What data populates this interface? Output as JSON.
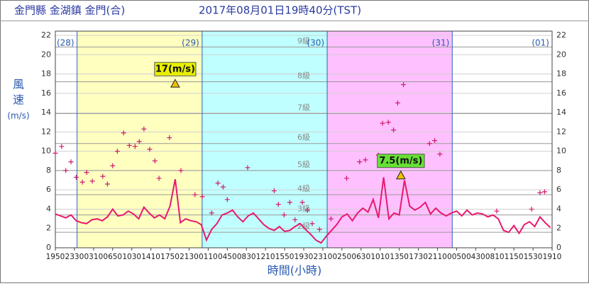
{
  "chart_data": {
    "type": "line",
    "title": "金門縣 金湖鎮 金門(合)",
    "subtitle": "2017年08月01日19時40分(TST)",
    "y_label_lines": [
      "風",
      "速",
      "(m/s)"
    ],
    "x_label": "時間(小時)",
    "xlim": [
      0,
      95.33
    ],
    "ylim": [
      0,
      22
    ],
    "yticks": [
      0,
      2,
      4,
      6,
      8,
      10,
      12,
      14,
      16,
      18,
      20,
      22
    ],
    "xticks": [
      {
        "value": 0,
        "label": "1950"
      },
      {
        "value": 3.667,
        "label": "2330"
      },
      {
        "value": 7.333,
        "label": "0310"
      },
      {
        "value": 11,
        "label": "0650"
      },
      {
        "value": 14.667,
        "label": "1030"
      },
      {
        "value": 18.333,
        "label": "1410"
      },
      {
        "value": 22,
        "label": "1750"
      },
      {
        "value": 25.667,
        "label": "2130"
      },
      {
        "value": 29.333,
        "label": "0110"
      },
      {
        "value": 33,
        "label": "0450"
      },
      {
        "value": 36.667,
        "label": "0830"
      },
      {
        "value": 40.333,
        "label": "1210"
      },
      {
        "value": 44,
        "label": "1550"
      },
      {
        "value": 47.667,
        "label": "1930"
      },
      {
        "value": 51.333,
        "label": "2310"
      },
      {
        "value": 55,
        "label": "0250"
      },
      {
        "value": 58.667,
        "label": "0630"
      },
      {
        "value": 62.333,
        "label": "1010"
      },
      {
        "value": 66,
        "label": "1350"
      },
      {
        "value": 69.667,
        "label": "1730"
      },
      {
        "value": 73.333,
        "label": "2110"
      },
      {
        "value": 77,
        "label": "0050"
      },
      {
        "value": 80.667,
        "label": "0430"
      },
      {
        "value": 84.333,
        "label": "0810"
      },
      {
        "value": 88,
        "label": "1150"
      },
      {
        "value": 91.667,
        "label": "1530"
      },
      {
        "value": 95.333,
        "label": "1910"
      }
    ],
    "day_boundaries": [
      4.167,
      28.167,
      52.167,
      76.167
    ],
    "day_labels": [
      "(28)",
      "(29)",
      "(30)",
      "(31)",
      "(01)"
    ],
    "band_colors": [
      "#ffffff",
      "#ffffc0",
      "#c0ffff",
      "#ffc0ff",
      "#ffffff"
    ],
    "beaufort": [
      {
        "value": 1.6,
        "label": "2級"
      },
      {
        "value": 3.4,
        "label": "3級"
      },
      {
        "value": 5.5,
        "label": "4級"
      },
      {
        "value": 8.0,
        "label": "5級"
      },
      {
        "value": 10.8,
        "label": "6級"
      },
      {
        "value": 13.9,
        "label": "7級"
      },
      {
        "value": 17.2,
        "label": "8級"
      },
      {
        "value": 20.8,
        "label": "9級"
      }
    ],
    "grid": true,
    "series": [
      {
        "color": "#e8196e",
        "x": [
          0,
          1,
          2,
          3,
          4,
          5,
          6,
          7,
          8,
          9,
          10,
          11,
          12,
          13,
          14,
          15,
          16,
          17,
          18,
          19,
          20,
          21,
          22,
          23,
          24,
          25,
          26,
          27,
          28,
          29,
          30,
          31,
          32,
          33,
          34,
          35,
          36,
          37,
          38,
          39,
          40,
          41,
          42,
          43,
          44,
          45,
          46,
          47,
          48,
          49,
          50,
          51,
          52,
          53,
          54,
          55,
          56,
          57,
          58,
          59,
          60,
          61,
          62,
          63,
          64,
          65,
          66,
          67,
          68,
          69,
          70,
          71,
          72,
          73,
          74,
          75,
          76,
          77,
          78,
          79,
          80,
          81,
          82,
          83,
          84,
          85,
          86,
          87,
          88,
          89,
          90,
          91,
          92,
          93,
          94,
          95
        ],
        "values": [
          3.5,
          3.3,
          3.1,
          3.4,
          2.8,
          2.6,
          2.5,
          2.9,
          3.0,
          2.8,
          3.2,
          4.0,
          3.3,
          3.4,
          3.8,
          3.5,
          3.0,
          4.2,
          3.6,
          3.1,
          3.4,
          3.0,
          4.3,
          7.1,
          2.6,
          3.0,
          2.8,
          2.7,
          2.4,
          0.8,
          1.9,
          2.5,
          3.4,
          3.6,
          3.9,
          3.2,
          2.7,
          3.3,
          3.6,
          3.0,
          2.4,
          2.0,
          1.8,
          2.2,
          1.7,
          1.8,
          2.2,
          2.5,
          1.9,
          1.4,
          0.8,
          0.5,
          1.2,
          1.8,
          2.4,
          3.2,
          3.5,
          2.8,
          3.6,
          4.1,
          3.7,
          5.0,
          3.1,
          7.3,
          3.0,
          3.6,
          3.4,
          7.0,
          4.3,
          3.9,
          4.2,
          4.7,
          3.5,
          4.1,
          3.6,
          3.3,
          3.6,
          3.8,
          3.3,
          3.9,
          3.4,
          3.6,
          3.5,
          3.2,
          3.4,
          3.0,
          1.8,
          1.6,
          2.3,
          1.5,
          2.4,
          2.7,
          2.2,
          3.2,
          2.6,
          2.1
        ]
      },
      {
        "type": "scatter",
        "color": "#d01a6e",
        "x": [
          0,
          1.2,
          2,
          3,
          4,
          5.2,
          6,
          7.1,
          9.1,
          10,
          11,
          11.9,
          13.1,
          14.2,
          15.3,
          16.1,
          17,
          18.1,
          19.1,
          19.9,
          21.9,
          24.1,
          26.8,
          28.2,
          30,
          31.2,
          32.2,
          33,
          36.9,
          42,
          42.8,
          43.9,
          45,
          46,
          47.4,
          48.4,
          49.3,
          50.7,
          52.9,
          55.9,
          58.4,
          59.5,
          62,
          62.8,
          63.9,
          64.9,
          65.7,
          66.8,
          71.8,
          72.8,
          73.8,
          84.7,
          91.4,
          93,
          93.9
        ],
        "values": [
          9.8,
          10.5,
          8.0,
          8.9,
          7.3,
          6.8,
          7.8,
          6.9,
          7.4,
          6.6,
          8.5,
          10.0,
          11.9,
          10.6,
          10.5,
          11.0,
          12.3,
          10.2,
          9.0,
          7.2,
          11.4,
          8.0,
          5.5,
          5.3,
          3.6,
          6.7,
          6.3,
          5.0,
          8.3,
          5.9,
          4.5,
          3.4,
          4.7,
          2.9,
          4.7,
          3.9,
          2.5,
          1.9,
          3.0,
          7.2,
          8.9,
          9.1,
          9.6,
          12.9,
          13.0,
          12.2,
          15.0,
          16.9,
          10.8,
          11.1,
          9.7,
          3.8,
          4.0,
          5.7,
          5.8
        ]
      }
    ],
    "annotations": [
      {
        "x": 23,
        "value": 17,
        "label": "17(m/s)"
      },
      {
        "x": 66.3,
        "value": 7.5,
        "label": "7.5(m/s)"
      }
    ]
  }
}
